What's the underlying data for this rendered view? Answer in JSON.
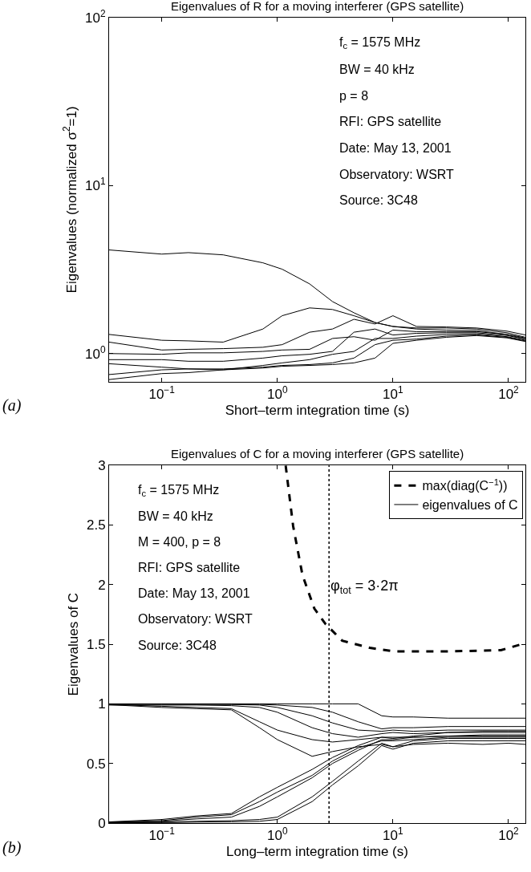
{
  "chart_data": [
    {
      "type": "line",
      "title": "Eigenvalues of R for a moving interferer (GPS satellite)",
      "xlabel": "Short–term integration time (s)",
      "ylabel": "Eigenvalues (normalized σ$^{2}$=1)",
      "log": "xy",
      "legend": false,
      "line_style": "solid",
      "marker": "none",
      "x": [
        0.035,
        0.1,
        0.17,
        0.34,
        0.75,
        1.1,
        1.9,
        3,
        4.6,
        7,
        10,
        16,
        29,
        53,
        97,
        140
      ],
      "xlim": [
        0.035,
        140
      ],
      "xticks": [
        {
          "value": 0.1,
          "label": "10$^{−1}$"
        },
        {
          "value": 1,
          "label": "10$^{0}$"
        },
        {
          "value": 10,
          "label": "10$^{1}$"
        },
        {
          "value": 100,
          "label": "10$^{2}$"
        }
      ],
      "ylim": [
        0.68,
        100
      ],
      "yticks": [
        {
          "value": 1,
          "label": "10$^{0}$"
        },
        {
          "value": 10,
          "label": "10$^{1}$"
        },
        {
          "value": 100,
          "label": "10$^{2}$"
        }
      ],
      "series": [
        {
          "color": "#000000",
          "values": [
            4.14,
            3.91,
            3.99,
            3.87,
            3.47,
            3.18,
            2.6,
            2.04,
            1.75,
            1.53,
            1.45,
            1.4,
            1.38,
            1.37,
            1.3,
            1.22
          ]
        },
        {
          "color": "#000000",
          "values": [
            1.3,
            1.2,
            1.19,
            1.17,
            1.4,
            1.68,
            1.87,
            1.83,
            1.68,
            1.53,
            1.45,
            1.42,
            1.42,
            1.4,
            1.33,
            1.25
          ]
        },
        {
          "color": "#000000",
          "values": [
            1.17,
            1.05,
            1.06,
            1.07,
            1.09,
            1.13,
            1.34,
            1.4,
            1.6,
            1.5,
            1.68,
            1.45,
            1.44,
            1.42,
            1.36,
            1.29
          ]
        },
        {
          "color": "#000000",
          "values": [
            1.0,
            0.99,
            1.01,
            1.01,
            1.03,
            1.05,
            1.06,
            1.23,
            1.26,
            1.2,
            1.38,
            1.35,
            1.35,
            1.35,
            1.3,
            1.24
          ]
        },
        {
          "color": "#000000",
          "values": [
            0.92,
            0.92,
            0.9,
            0.9,
            0.94,
            0.97,
            0.99,
            1.03,
            1.34,
            1.4,
            1.29,
            1.32,
            1.33,
            1.33,
            1.28,
            1.22
          ]
        },
        {
          "color": "#000000",
          "values": [
            0.87,
            0.83,
            0.81,
            0.8,
            0.85,
            0.88,
            0.92,
            0.99,
            1.03,
            1.23,
            1.23,
            1.27,
            1.3,
            1.31,
            1.26,
            1.2
          ]
        },
        {
          "color": "#000000",
          "values": [
            0.75,
            0.8,
            0.81,
            0.81,
            0.83,
            0.85,
            0.86,
            0.88,
            0.94,
            1.13,
            1.2,
            1.22,
            1.27,
            1.29,
            1.25,
            1.19
          ]
        },
        {
          "color": "#000000",
          "values": [
            0.7,
            0.76,
            0.77,
            0.8,
            0.82,
            0.84,
            0.85,
            0.86,
            0.88,
            0.94,
            1.15,
            1.2,
            1.25,
            1.28,
            1.24,
            1.18
          ]
        }
      ],
      "annotations": [
        "f$_{c}$ = 1575 MHz",
        "BW = 40 kHz",
        "p = 8",
        "RFI: GPS satellite",
        "Date: May 13, 2001",
        "Observatory: WSRT",
        "Source: 3C48",
        "(a)"
      ]
    },
    {
      "type": "line",
      "title": "Eigenvalues of C for a moving interferer (GPS satellite)",
      "xlabel": "Long–term integration time (s)",
      "ylabel": "Eigenvalues of C",
      "log": "x",
      "legend": "top right",
      "line_style": "solid",
      "marker": "none",
      "x": [
        0.035,
        0.1,
        0.2,
        0.4,
        0.7,
        1,
        2,
        3,
        5,
        8,
        10,
        15,
        30,
        60,
        100,
        140
      ],
      "xlim": [
        0.035,
        140
      ],
      "xticks": [
        {
          "value": 0.1,
          "label": "10$^{−1}$"
        },
        {
          "value": 1,
          "label": "10$^{0}$"
        },
        {
          "value": 10,
          "label": "10$^{1}$"
        },
        {
          "value": 100,
          "label": "10$^{2}$"
        }
      ],
      "ylim": [
        0,
        3
      ],
      "yticks": [
        0,
        0.5,
        1,
        1.5,
        2,
        2.5,
        3
      ],
      "ref_lines": [
        {
          "axis": "x",
          "value": 2.8,
          "label": "φ$_{tot}$ = 3·2π",
          "color": "#000000",
          "line_style": "dotted"
        }
      ],
      "series": [
        {
          "name": "max(diag(C$^{−1}$))",
          "color": "#000000",
          "line_style": "dashed",
          "x": [
            1.18,
            1.37,
            1.65,
            2.09,
            2.61,
            3.64,
            6.3,
            10.2,
            29,
            86,
            129,
            140
          ],
          "values": [
            3.0,
            2.49,
            2.08,
            1.8,
            1.67,
            1.53,
            1.47,
            1.44,
            1.44,
            1.45,
            1.5,
            1.48
          ]
        },
        {
          "name": "eigenvalues of C",
          "color": "#000000",
          "values": [
            1,
            1,
            1,
            1,
            1,
            1,
            1,
            1,
            1,
            0.9,
            0.89,
            0.89,
            0.88,
            0.88,
            0.88,
            0.88
          ]
        },
        {
          "color": "#000000",
          "values": [
            0.998,
            0.998,
            0.998,
            0.997,
            0.996,
            0.99,
            0.97,
            0.93,
            0.85,
            0.79,
            0.8,
            0.8,
            0.81,
            0.81,
            0.81,
            0.81
          ]
        },
        {
          "color": "#000000",
          "values": [
            0.995,
            0.98,
            0.97,
            0.96,
            0.85,
            0.78,
            0.7,
            0.68,
            0.7,
            0.72,
            0.72,
            0.72,
            0.73,
            0.73,
            0.73,
            0.73
          ]
        },
        {
          "color": "#000000",
          "values": [
            0.993,
            0.97,
            0.96,
            0.95,
            0.8,
            0.7,
            0.56,
            0.6,
            0.64,
            0.66,
            0.64,
            0.66,
            0.67,
            0.66,
            0.67,
            0.66
          ]
        },
        {
          "color": "#000000",
          "values": [
            0.99,
            0.99,
            0.99,
            0.985,
            0.97,
            0.93,
            0.8,
            0.75,
            0.72,
            0.75,
            0.76,
            0.75,
            0.76,
            0.76,
            0.76,
            0.76
          ]
        },
        {
          "color": "#000000",
          "values": [
            0.997,
            0.997,
            0.996,
            0.995,
            0.99,
            0.97,
            0.9,
            0.84,
            0.78,
            0.77,
            0.78,
            0.77,
            0.78,
            0.78,
            0.78,
            0.78
          ]
        },
        {
          "color": "#000000",
          "values": [
            0.01,
            0.03,
            0.06,
            0.08,
            0.22,
            0.3,
            0.45,
            0.55,
            0.65,
            0.72,
            0.71,
            0.73,
            0.76,
            0.77,
            0.77,
            0.77
          ]
        },
        {
          "color": "#000000",
          "values": [
            0.008,
            0.02,
            0.05,
            0.07,
            0.18,
            0.26,
            0.4,
            0.52,
            0.63,
            0.69,
            0.69,
            0.7,
            0.72,
            0.72,
            0.72,
            0.72
          ]
        },
        {
          "color": "#000000",
          "values": [
            0.004,
            0.008,
            0.015,
            0.02,
            0.03,
            0.05,
            0.22,
            0.35,
            0.52,
            0.67,
            0.64,
            0.69,
            0.71,
            0.71,
            0.71,
            0.71
          ]
        },
        {
          "color": "#000000",
          "values": [
            0.002,
            0.004,
            0.008,
            0.01,
            0.015,
            0.03,
            0.18,
            0.32,
            0.48,
            0.65,
            0.62,
            0.67,
            0.69,
            0.69,
            0.69,
            0.69
          ]
        },
        {
          "color": "#000000",
          "values": [
            0.006,
            0.015,
            0.035,
            0.05,
            0.14,
            0.22,
            0.38,
            0.5,
            0.61,
            0.7,
            0.7,
            0.72,
            0.73,
            0.74,
            0.74,
            0.74
          ]
        }
      ],
      "annotations": [
        "f$_{c}$ = 1575 MHz",
        "BW = 40 kHz",
        "M = 400, p = 8",
        "RFI: GPS satellite",
        "Date: May 13, 2001",
        "Observatory: WSRT",
        "Source: 3C48",
        "(b)"
      ]
    }
  ]
}
